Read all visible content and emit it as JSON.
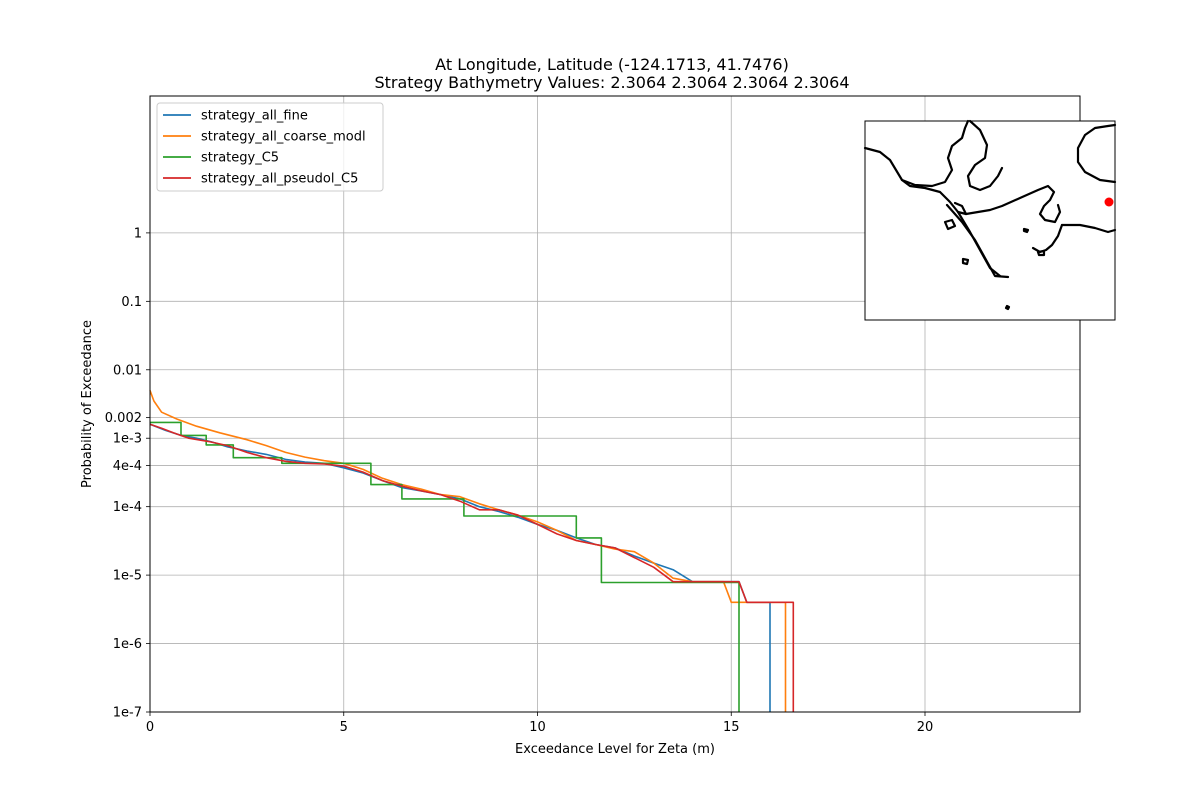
{
  "chart_data": {
    "type": "line",
    "title_line1": "At Longitude, Latitude (-124.1713,  41.7476)",
    "title_line2": "Strategy Bathymetry Values:    2.3064    2.3064    2.3064    2.3064",
    "xlabel": "Exceedance Level for Zeta (m)",
    "ylabel": "Probability of Exceedance",
    "xlim": [
      0,
      24
    ],
    "ylim": [
      1e-07,
      100
    ],
    "yscale": "log",
    "grid": true,
    "legend_position": "upper left",
    "x_ticks": [
      {
        "value": 0,
        "label": "0"
      },
      {
        "value": 5,
        "label": "5"
      },
      {
        "value": 10,
        "label": "10"
      },
      {
        "value": 15,
        "label": "15"
      },
      {
        "value": 20,
        "label": "20"
      }
    ],
    "y_ticks": [
      {
        "value": 1,
        "label": "1"
      },
      {
        "value": 0.1,
        "label": "0.1"
      },
      {
        "value": 0.01,
        "label": "0.01"
      },
      {
        "value": 0.002,
        "label": "0.002"
      },
      {
        "value": 0.001,
        "label": "1e-3"
      },
      {
        "value": 0.0004,
        "label": "4e-4"
      },
      {
        "value": 0.0001,
        "label": "1e-4"
      },
      {
        "value": 1e-05,
        "label": "1e-5"
      },
      {
        "value": 1e-06,
        "label": "1e-6"
      },
      {
        "value": 1e-07,
        "label": "1e-7"
      }
    ],
    "series": [
      {
        "name": "strategy_all_fine",
        "color": "#1f77b4",
        "x": [
          0,
          0.4,
          0.8,
          1.2,
          1.6,
          2.0,
          2.5,
          3.0,
          3.5,
          4.0,
          4.5,
          5.0,
          5.5,
          6.0,
          6.5,
          7.0,
          7.5,
          8.0,
          8.5,
          9.0,
          9.5,
          10.0,
          10.5,
          11.0,
          11.5,
          12.0,
          12.5,
          13.0,
          13.5,
          14.0,
          15.0,
          15.2,
          15.4,
          16.0,
          16.0
        ],
        "y": [
          0.0016,
          0.0013,
          0.0011,
          0.001,
          0.00088,
          0.00075,
          0.00065,
          0.00058,
          0.00049,
          0.00045,
          0.00043,
          0.00037,
          0.00031,
          0.00024,
          0.00019,
          0.00017,
          0.00015,
          0.00013,
          0.0001,
          8.5e-05,
          7e-05,
          5.5e-05,
          4.5e-05,
          3.5e-05,
          2.8e-05,
          2.5e-05,
          1.9e-05,
          1.5e-05,
          1.2e-05,
          8e-06,
          8e-06,
          8e-06,
          4e-06,
          4e-06,
          1e-07
        ]
      },
      {
        "name": "strategy_all_coarse_modl",
        "color": "#ff7f0e",
        "x": [
          0,
          0.1,
          0.3,
          0.7,
          1.2,
          1.8,
          2.5,
          3.0,
          3.5,
          4.0,
          4.5,
          5.0,
          5.5,
          6.0,
          6.5,
          7.0,
          7.5,
          8.0,
          8.5,
          9.0,
          9.5,
          10.0,
          10.5,
          11.0,
          11.5,
          12.0,
          12.5,
          13.0,
          13.5,
          14.0,
          14.8,
          15.0,
          16.0,
          16.4,
          16.4
        ],
        "y": [
          0.005,
          0.0035,
          0.0024,
          0.0019,
          0.0015,
          0.0012,
          0.00095,
          0.00078,
          0.00062,
          0.00053,
          0.00047,
          0.00043,
          0.00035,
          0.00026,
          0.00021,
          0.00018,
          0.00015,
          0.00014,
          0.00011,
          9e-05,
          7.5e-05,
          6e-05,
          4.5e-05,
          3.2e-05,
          2.8e-05,
          2.4e-05,
          2.2e-05,
          1.5e-05,
          9e-06,
          8e-06,
          8e-06,
          4e-06,
          4e-06,
          4e-06,
          1e-07
        ]
      },
      {
        "name": "strategy_C5",
        "color": "#2ca02c",
        "x": [
          0,
          0.8,
          0.8,
          1.45,
          1.45,
          2.15,
          2.15,
          3.4,
          3.4,
          5.7,
          5.7,
          6.5,
          6.5,
          8.1,
          8.1,
          11.0,
          11.0,
          11.65,
          11.65,
          15.2,
          15.2
        ],
        "y": [
          0.0017,
          0.0017,
          0.0011,
          0.0011,
          0.0008,
          0.0008,
          0.00052,
          0.00052,
          0.00043,
          0.00043,
          0.00021,
          0.00021,
          0.00013,
          0.00013,
          7.3e-05,
          7.3e-05,
          3.5e-05,
          3.5e-05,
          7.8e-06,
          7.8e-06,
          1e-07
        ]
      },
      {
        "name": "strategy_all_pseudol_C5",
        "color": "#d62728",
        "x": [
          0,
          0.3,
          0.6,
          1.0,
          1.5,
          2.0,
          2.5,
          3.0,
          3.5,
          4.0,
          4.5,
          5.0,
          5.5,
          6.0,
          6.5,
          7.0,
          7.5,
          8.0,
          8.5,
          9.0,
          9.5,
          10.0,
          10.5,
          11.0,
          11.5,
          12.0,
          12.5,
          13.0,
          13.5,
          14.0,
          15.0,
          15.2,
          15.4,
          16.6,
          16.6
        ],
        "y": [
          0.0016,
          0.0014,
          0.0012,
          0.001,
          0.0009,
          0.00078,
          0.00062,
          0.00052,
          0.00046,
          0.00043,
          0.00042,
          0.00039,
          0.00032,
          0.00024,
          0.0002,
          0.00017,
          0.00015,
          0.00012,
          9e-05,
          9e-05,
          7.5e-05,
          5.5e-05,
          4e-05,
          3.2e-05,
          2.8e-05,
          2.5e-05,
          1.8e-05,
          1.3e-05,
          8e-06,
          8e-06,
          8e-06,
          8e-06,
          4e-06,
          4e-06,
          1e-07
        ]
      }
    ],
    "inset_map": {
      "land_color": "#000000",
      "marker_color": "#ff0000"
    }
  }
}
